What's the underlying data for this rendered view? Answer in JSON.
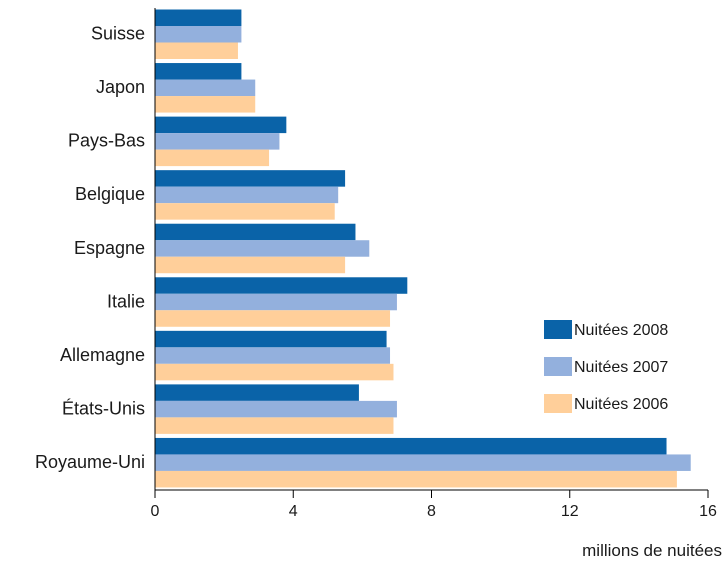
{
  "chart_data": {
    "type": "bar",
    "orientation": "horizontal",
    "categories": [
      "Suisse",
      "Japon",
      "Pays-Bas",
      "Belgique",
      "Espagne",
      "Italie",
      "Allemagne",
      "États-Unis",
      "Royaume-Uni"
    ],
    "series": [
      {
        "name": "Nuitées 2008",
        "color": "#0a63a8",
        "values": [
          2.5,
          2.5,
          3.8,
          5.5,
          5.8,
          7.3,
          6.7,
          5.9,
          14.8
        ]
      },
      {
        "name": "Nuitées 2007",
        "color": "#93b0dd",
        "values": [
          2.5,
          2.9,
          3.6,
          5.3,
          6.2,
          7.0,
          6.8,
          7.0,
          15.5
        ]
      },
      {
        "name": "Nuitées 2006",
        "color": "#ffcf9a",
        "values": [
          2.4,
          2.9,
          3.3,
          5.2,
          5.5,
          6.8,
          6.9,
          6.9,
          15.1
        ]
      }
    ],
    "xlabel": "millions de nuitées",
    "ylabel": "",
    "xlim": [
      0,
      16
    ],
    "xticks": [
      0,
      4,
      8,
      12,
      16
    ],
    "grid": false,
    "legend_position": "right"
  }
}
